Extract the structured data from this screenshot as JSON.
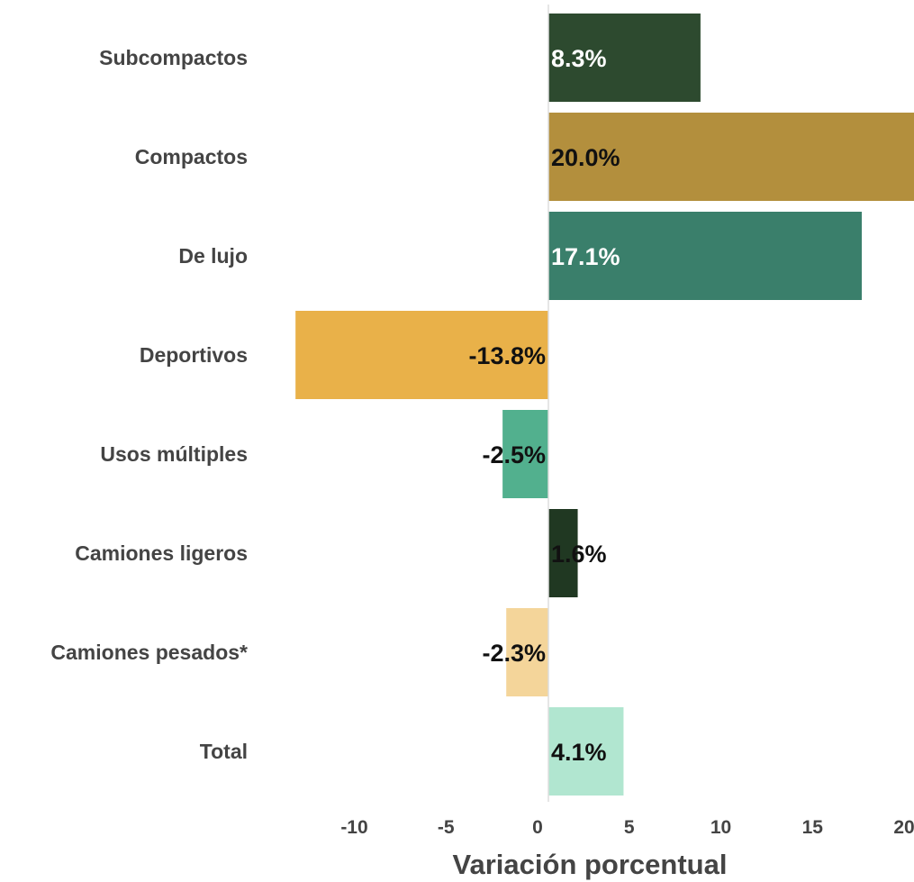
{
  "chart_data": {
    "type": "bar",
    "orientation": "horizontal",
    "categories": [
      "Subcompactos",
      "Compactos",
      "De lujo",
      "Deportivos",
      "Usos múltiples",
      "Camiones ligeros",
      "Camiones pesados*",
      "Total"
    ],
    "values": [
      8.3,
      20.0,
      17.1,
      -13.8,
      -2.5,
      1.6,
      -2.3,
      4.1
    ],
    "value_labels": [
      "8.3%",
      "20.0%",
      "17.1%",
      "-13.8%",
      "-2.5%",
      "1.6%",
      "-2.3%",
      "4.1%"
    ],
    "colors": [
      "#2d4a2f",
      "#b38f3d",
      "#3a7f6b",
      "#e9b149",
      "#52b08e",
      "#203822",
      "#f4d59a",
      "#b1e6d0"
    ],
    "label_colors": [
      "#ffffff",
      "#111111",
      "#ffffff",
      "#111111",
      "#111111",
      "#111111",
      "#111111",
      "#111111"
    ],
    "xlabel": "Variación porcentual",
    "ylabel": "",
    "xlim": [
      -13.8,
      20.0
    ],
    "xticks": [
      -10,
      -5,
      0,
      5,
      10,
      15,
      20
    ],
    "xtick_labels": [
      "-10",
      "-5",
      "0",
      "5",
      "10",
      "15",
      "20"
    ],
    "grid": false,
    "legend": "none"
  }
}
